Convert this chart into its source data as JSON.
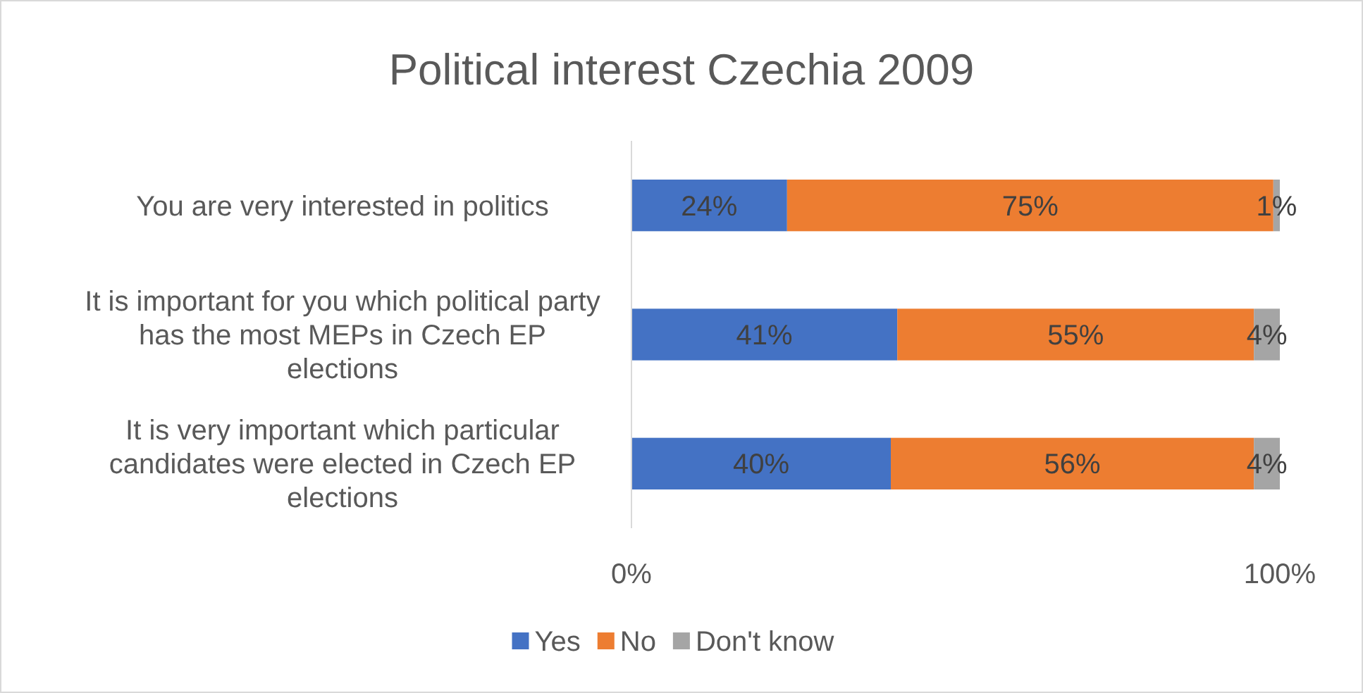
{
  "chart_data": {
    "type": "bar",
    "orientation": "horizontal",
    "stacked": true,
    "title": "Political interest Czechia 2009",
    "categories": [
      "You are very interested in politics",
      "It is important for you which political party has the most MEPs in Czech EP elections",
      "It is very important which particular candidates were elected in Czech EP elections"
    ],
    "series": [
      {
        "name": "Yes",
        "color": "#4472c4",
        "values": [
          24,
          41,
          40
        ],
        "value_labels": [
          "24%",
          "41%",
          "40%"
        ]
      },
      {
        "name": "No",
        "color": "#ed7d31",
        "values": [
          75,
          55,
          56
        ],
        "value_labels": [
          "75%",
          "55%",
          "56%"
        ]
      },
      {
        "name": "Don't know",
        "color": "#a5a5a5",
        "values": [
          1,
          4,
          4
        ],
        "value_labels": [
          "1%",
          "4%",
          "4%"
        ]
      }
    ],
    "xlim": [
      0,
      100
    ],
    "xticks": [
      {
        "value": 0,
        "label": "0%"
      },
      {
        "value": 100,
        "label": "100%"
      }
    ],
    "grid": false,
    "legend": "bottom"
  }
}
